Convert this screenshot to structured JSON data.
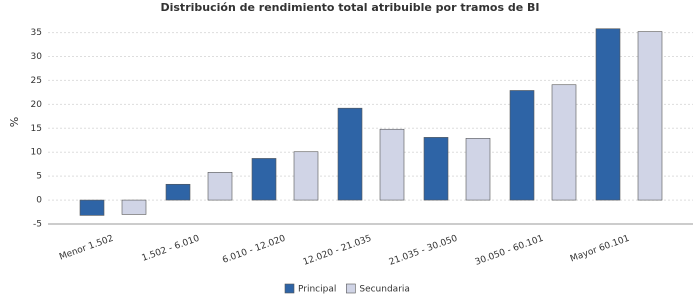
{
  "chart_data": {
    "type": "bar",
    "title": "Distribución de rendimiento total atribuible por tramos de BI",
    "y_label": "%",
    "categories": [
      "Menor 1.502",
      "1.502 - 6.010",
      "6.010 - 12.020",
      "12.020 - 21.035",
      "21.035 - 30.050",
      "30.050 - 60.101",
      "Mayor 60.101"
    ],
    "series": [
      {
        "name": "Principal",
        "color": "#2e64a6",
        "values": [
          -3.2,
          3.3,
          8.7,
          19.2,
          13.1,
          22.9,
          35.8
        ]
      },
      {
        "name": "Secundaria",
        "color": "#d0d4e6",
        "values": [
          -3.0,
          5.8,
          10.1,
          14.8,
          12.9,
          24.1,
          35.2
        ]
      }
    ],
    "ylim": [
      -5,
      37
    ],
    "yticks": [
      -5,
      0,
      5,
      10,
      15,
      20,
      25,
      30,
      35
    ],
    "grid": true,
    "legend": "bottom"
  }
}
